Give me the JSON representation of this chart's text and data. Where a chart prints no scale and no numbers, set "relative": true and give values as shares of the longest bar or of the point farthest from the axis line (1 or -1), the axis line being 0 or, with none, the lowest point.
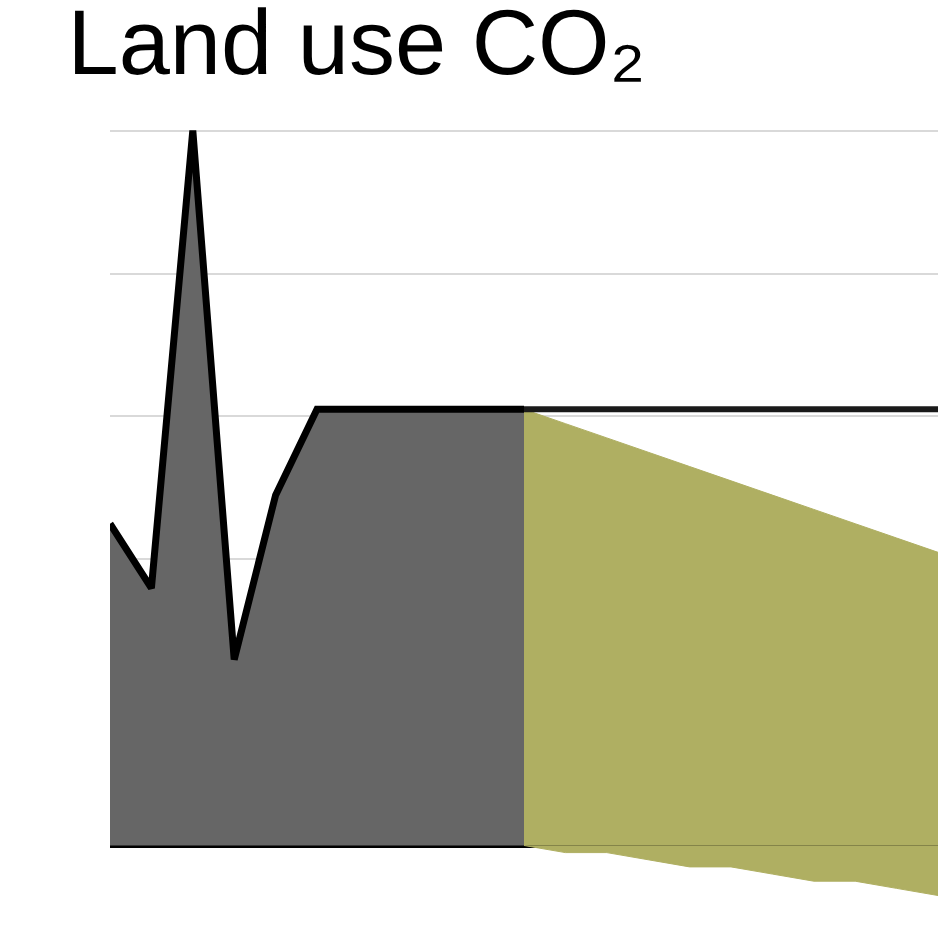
{
  "chart_data": {
    "type": "area",
    "title": "Land use CO₂",
    "relative": true,
    "grid": true,
    "categories": [
      null,
      null,
      null,
      null,
      null,
      null,
      null,
      null,
      null,
      null,
      null,
      null,
      null,
      null,
      null,
      null,
      null,
      null,
      null,
      null,
      null
    ],
    "series": [
      {
        "color": "#666666",
        "line_style": "solid",
        "values": [
          0.45,
          0.36,
          1,
          0.26,
          0.49,
          0.61,
          0.61,
          0.61,
          0.61,
          0.61,
          0.61,
          null,
          null,
          null,
          null,
          null,
          null,
          null,
          null,
          null,
          null
        ]
      },
      {
        "color": "#afaf62",
        "values": [
          null,
          null,
          null,
          null,
          null,
          null,
          null,
          null,
          null,
          null,
          0.61,
          0.59,
          0.57,
          0.55,
          0.53,
          0.51,
          0.49,
          0.47,
          0.45,
          0.43,
          0.41
        ]
      },
      {
        "color": "#afaf62",
        "values": [
          null,
          null,
          null,
          null,
          null,
          null,
          null,
          null,
          null,
          null,
          0,
          -0.01,
          -0.01,
          -0.02,
          -0.03,
          -0.03,
          -0.04,
          -0.05,
          -0.05,
          -0.06,
          -0.07
        ]
      },
      {
        "type": "line",
        "color": "#1a1a1a",
        "values": [
          null,
          null,
          null,
          null,
          null,
          null,
          null,
          null,
          null,
          null,
          0.61,
          0.61,
          0.61,
          0.61,
          0.61,
          0.61,
          0.61,
          0.61,
          0.61,
          0.61,
          0.61
        ]
      }
    ]
  }
}
